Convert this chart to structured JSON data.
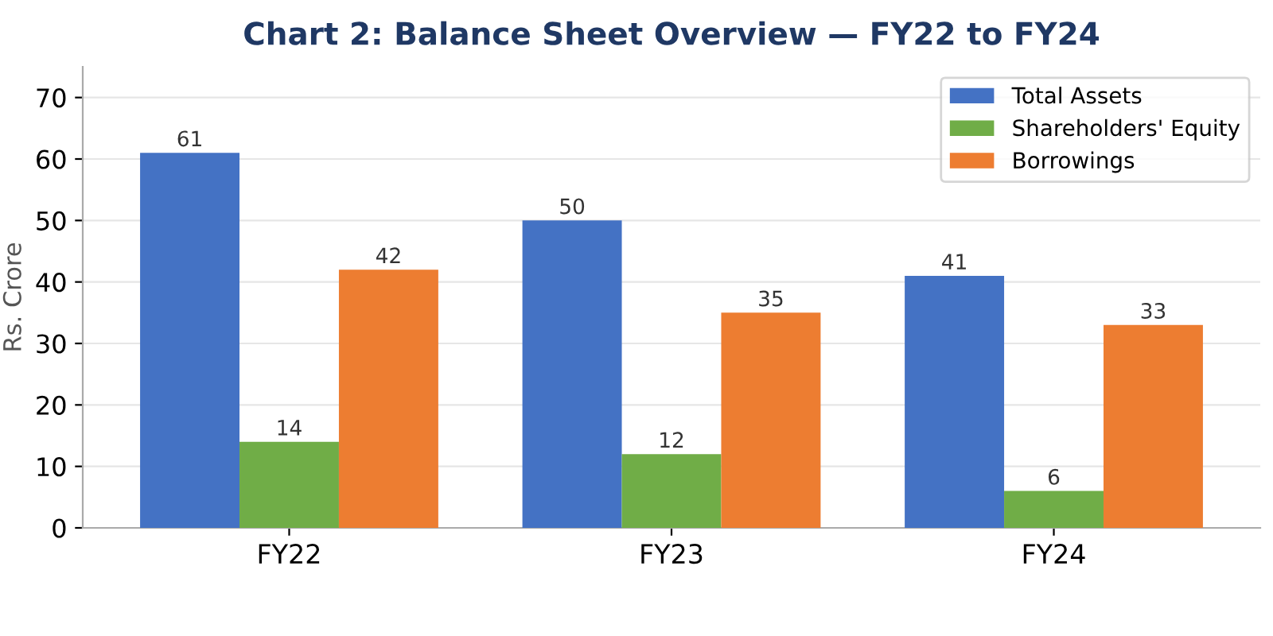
{
  "chart_data": {
    "type": "bar",
    "title": "Chart 2: Balance Sheet Overview — FY22 to FY24",
    "ylabel": "Rs. Crore",
    "categories": [
      "FY22",
      "FY23",
      "FY24"
    ],
    "series": [
      {
        "name": "Total Assets",
        "color": "#4472c4",
        "values": [
          61,
          50,
          41
        ]
      },
      {
        "name": "Shareholders' Equity",
        "color": "#70ad47",
        "values": [
          14,
          12,
          6
        ]
      },
      {
        "name": "Borrowings",
        "color": "#ed7d31",
        "values": [
          42,
          35,
          33
        ]
      }
    ],
    "ylim": [
      0,
      75
    ],
    "yticks": [
      0,
      10,
      20,
      30,
      40,
      50,
      60,
      70
    ],
    "grid": "y",
    "legend": "top right",
    "data_labels": true
  }
}
